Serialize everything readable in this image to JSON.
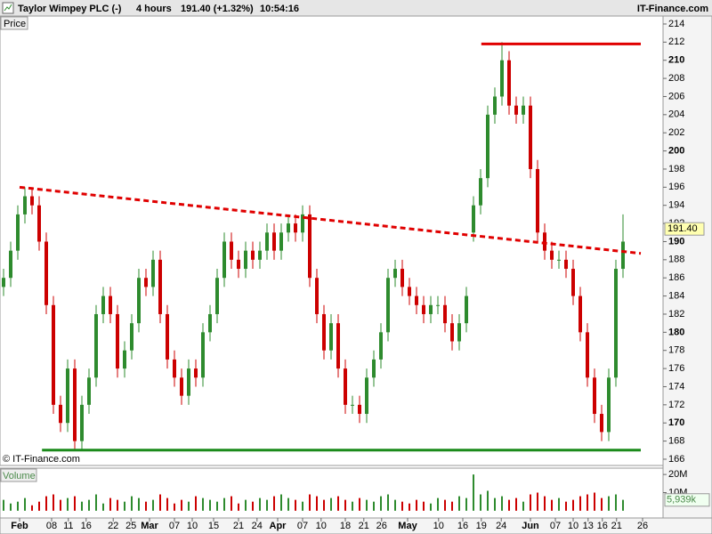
{
  "header": {
    "title": "Taylor Wimpey PLC (-)",
    "interval": "4 hours",
    "quote": "191.40 (+1.32%)",
    "time": "10:54:16",
    "brand": "IT-Finance.com"
  },
  "chart_data": [
    {
      "type": "candlestick",
      "label": "Price",
      "watermark": "© IT-Finance.com",
      "xlim": [
        -0.5,
        92.625
      ],
      "ylim": [
        165.31,
        214.88
      ],
      "up_color": "#2e8b2e",
      "down_color": "#cc0000",
      "open": [
        185,
        186,
        189,
        193,
        195,
        194,
        190,
        183,
        172,
        170,
        176,
        168,
        172,
        175,
        182,
        184,
        182,
        176,
        178,
        181,
        186,
        185,
        188,
        182,
        177,
        175,
        173,
        176,
        175,
        180,
        182,
        186,
        190,
        188,
        187,
        189,
        188,
        189,
        191,
        189,
        191,
        192,
        191,
        193,
        186,
        182,
        178,
        181,
        176,
        172,
        172,
        171,
        175,
        177,
        180,
        186,
        187,
        185,
        184,
        183,
        182,
        183,
        183,
        181,
        179,
        181,
        191,
        194,
        197,
        204,
        206,
        210,
        205,
        204,
        205,
        198,
        191,
        189,
        188,
        188,
        187,
        184,
        180,
        175,
        171,
        169,
        175,
        187
      ],
      "high": [
        187,
        190,
        194,
        196,
        196,
        195,
        191,
        184,
        173,
        177,
        177,
        173,
        176,
        183,
        185,
        185,
        183,
        179,
        182,
        187,
        187,
        189,
        189,
        183,
        178,
        176,
        177,
        177,
        181,
        183,
        187,
        191,
        191,
        189,
        190,
        190,
        190,
        192,
        192,
        192,
        193,
        193,
        194,
        194,
        187,
        183,
        182,
        182,
        177,
        173,
        173,
        176,
        178,
        181,
        187,
        188,
        188,
        186,
        185,
        184,
        184,
        184,
        184,
        182,
        182,
        185,
        195,
        198,
        205,
        207,
        212,
        211,
        206,
        206,
        206,
        199,
        192,
        190,
        189,
        189,
        188,
        185,
        181,
        176,
        172,
        176,
        188,
        193
      ],
      "low": [
        184,
        185,
        188,
        192,
        193,
        189,
        182,
        171,
        169,
        169,
        167,
        167,
        171,
        174,
        181,
        181,
        175,
        175,
        177,
        180,
        184,
        184,
        181,
        176,
        174,
        172,
        172,
        174,
        174,
        179,
        181,
        185,
        187,
        186,
        186,
        187,
        187,
        188,
        188,
        188,
        190,
        190,
        190,
        185,
        181,
        177,
        177,
        175,
        171,
        171,
        170,
        170,
        174,
        176,
        179,
        185,
        184,
        183,
        182,
        181,
        181,
        182,
        180,
        178,
        178,
        180,
        190,
        193,
        196,
        203,
        205,
        204,
        203,
        203,
        197,
        190,
        188,
        187,
        187,
        186,
        183,
        179,
        174,
        170,
        168,
        168,
        174,
        186
      ],
      "close": [
        186,
        189,
        193,
        195,
        194,
        190,
        183,
        172,
        170,
        176,
        168,
        172,
        175,
        182,
        184,
        182,
        176,
        178,
        181,
        186,
        185,
        188,
        182,
        177,
        175,
        173,
        176,
        175,
        180,
        182,
        186,
        190,
        188,
        187,
        189,
        188,
        189,
        191,
        189,
        191,
        192,
        191,
        193,
        186,
        182,
        178,
        181,
        176,
        172,
        172,
        171,
        175,
        177,
        180,
        186,
        187,
        185,
        184,
        183,
        182,
        183,
        183,
        181,
        179,
        181,
        184,
        194,
        197,
        204,
        206,
        210,
        205,
        204,
        205,
        198,
        191,
        189,
        188,
        188,
        187,
        184,
        180,
        175,
        171,
        169,
        175,
        187,
        190
      ],
      "yticks": [
        166,
        168,
        170,
        172,
        174,
        176,
        178,
        180,
        182,
        184,
        186,
        188,
        190,
        192,
        194,
        196,
        198,
        200,
        202,
        204,
        206,
        208,
        210,
        212,
        214
      ],
      "last_price": {
        "value": 191.4,
        "label": "191.40"
      },
      "lines": [
        {
          "x": [
            67.1,
            89.5
          ],
          "y": [
            211.8,
            211.8
          ],
          "color": "#e00000",
          "dash": false
        },
        {
          "x": [
            5.4,
            89.5
          ],
          "y": [
            167,
            167
          ],
          "color": "#1a8a1a",
          "dash": false
        },
        {
          "x": [
            2.25,
            89.5
          ],
          "y": [
            196,
            188.7
          ],
          "color": "#e00000",
          "dash": true
        }
      ],
      "xticks": [
        {
          "value": 2.25,
          "label": "Feb",
          "bold": true
        },
        {
          "value": 6.75,
          "label": "08"
        },
        {
          "value": 9.1,
          "label": "11"
        },
        {
          "value": 11.6,
          "label": "16"
        },
        {
          "value": 15.4,
          "label": "22"
        },
        {
          "value": 17.9,
          "label": "25"
        },
        {
          "value": 20.5,
          "label": "Mar",
          "bold": true
        },
        {
          "value": 24,
          "label": "07"
        },
        {
          "value": 26.5,
          "label": "10"
        },
        {
          "value": 29.5,
          "label": "15"
        },
        {
          "value": 33,
          "label": "21"
        },
        {
          "value": 35.6,
          "label": "24"
        },
        {
          "value": 38.5,
          "label": "Apr",
          "bold": true
        },
        {
          "value": 42,
          "label": "07"
        },
        {
          "value": 44.6,
          "label": "10"
        },
        {
          "value": 48,
          "label": "18"
        },
        {
          "value": 50.6,
          "label": "21"
        },
        {
          "value": 53.1,
          "label": "26"
        },
        {
          "value": 56.75,
          "label": "May",
          "bold": true
        },
        {
          "value": 61.1,
          "label": "10"
        },
        {
          "value": 64.5,
          "label": "16"
        },
        {
          "value": 67.1,
          "label": "19"
        },
        {
          "value": 69.9,
          "label": "24"
        },
        {
          "value": 74,
          "label": "Jun",
          "bold": true
        },
        {
          "value": 77.5,
          "label": "07"
        },
        {
          "value": 80,
          "label": "10"
        },
        {
          "value": 82.1,
          "label": "13"
        },
        {
          "value": 84.1,
          "label": "16"
        },
        {
          "value": 86.1,
          "label": "21"
        },
        {
          "value": 89.75,
          "label": "26"
        }
      ]
    },
    {
      "type": "volume",
      "label": "Volume",
      "ylim": [
        -4,
        23.5
      ],
      "values": [
        6,
        4,
        5,
        7,
        3,
        5,
        8,
        9,
        6,
        7,
        8,
        5,
        6,
        9,
        4,
        7,
        6,
        5,
        8,
        7,
        5,
        6,
        9,
        7,
        4,
        6,
        5,
        8,
        7,
        6,
        5,
        7,
        8,
        4,
        6,
        5,
        7,
        6,
        8,
        9,
        7,
        6,
        5,
        9,
        8,
        6,
        7,
        8,
        6,
        5,
        7,
        6,
        5,
        8,
        9,
        6,
        5,
        4,
        6,
        5,
        4,
        7,
        6,
        5,
        8,
        7,
        20,
        9,
        11,
        7,
        8,
        6,
        7,
        5,
        9,
        10,
        8,
        6,
        7,
        5,
        6,
        8,
        9,
        10,
        7,
        8,
        9,
        6
      ],
      "yticks": [
        {
          "value": 10,
          "label": "10M"
        },
        {
          "value": 20,
          "label": "20M"
        }
      ],
      "last_volume": {
        "value": 5.939,
        "label": "5,939k"
      }
    }
  ]
}
